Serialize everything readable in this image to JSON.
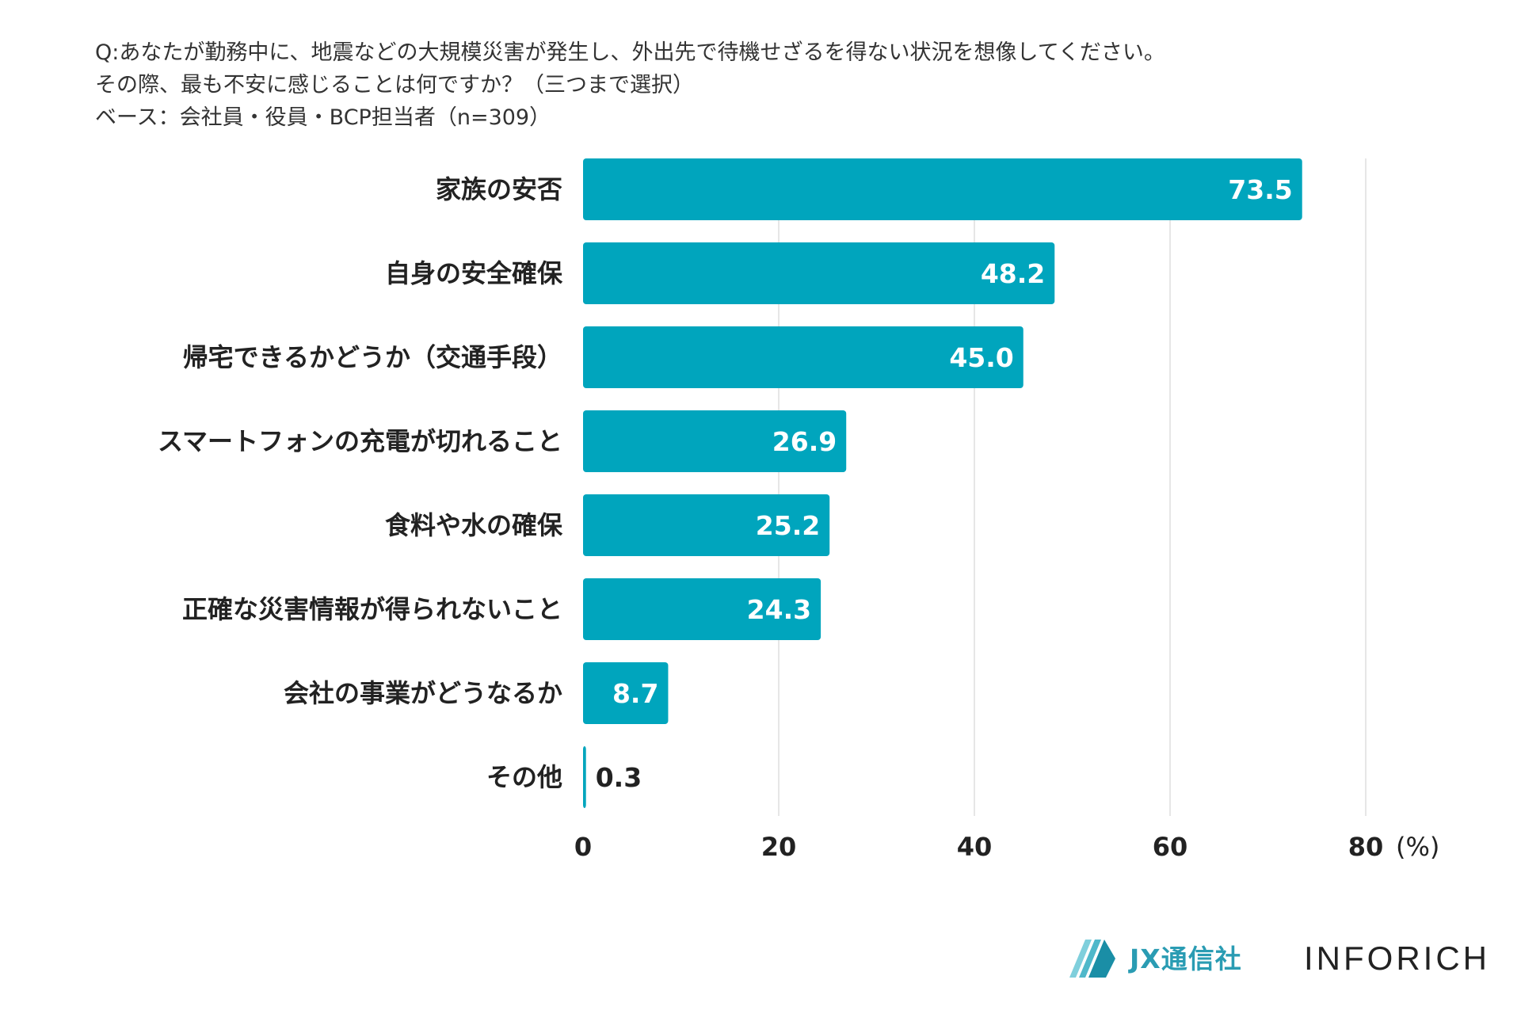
{
  "question": {
    "line1": "Q:あなたが勤務中に、地震などの大規模災害が発生し、外出先で待機せざるを得ない状況を想像してください。",
    "line2": "その際、最も不安に感じることは何ですか？（三つまで選択）",
    "line3": "ベース：会社員・役員・BCP担当者（n=309）"
  },
  "chart_data": {
    "type": "bar",
    "orientation": "horizontal",
    "categories": [
      "家族の安否",
      "自身の安全確保",
      "帰宅できるかどうか（交通手段）",
      "スマートフォンの充電が切れること",
      "食料や水の確保",
      "正確な災害情報が得られないこと",
      "会社の事業がどうなるか",
      "その他"
    ],
    "values": [
      73.5,
      48.2,
      45.0,
      26.9,
      25.2,
      24.3,
      8.7,
      0.3
    ],
    "value_labels": [
      "73.5",
      "48.2",
      "45.0",
      "26.9",
      "25.2",
      "24.3",
      "8.7",
      "0.3"
    ],
    "xlim": [
      0,
      80
    ],
    "xticks": [
      "0",
      "20",
      "40",
      "60",
      "80"
    ],
    "xunit": "(%)",
    "grid": true,
    "color": "#00a5bd"
  },
  "footer": {
    "jx_name": "JX通信社",
    "inforich_name": "INFORICH"
  },
  "colors": {
    "bar": "#00a5bd",
    "grid": "#dddddd",
    "logo_dark": "#1a8ea6",
    "logo_light": "#7fcfdc"
  }
}
